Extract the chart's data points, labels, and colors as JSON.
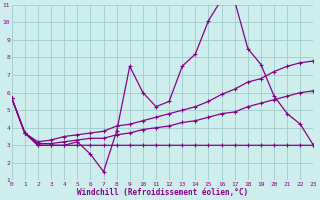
{
  "xlabel": "Windchill (Refroidissement éolien,°C)",
  "xlim": [
    0,
    23
  ],
  "ylim": [
    1,
    11
  ],
  "xticks": [
    0,
    1,
    2,
    3,
    4,
    5,
    6,
    7,
    8,
    9,
    10,
    11,
    12,
    13,
    14,
    15,
    16,
    17,
    18,
    19,
    20,
    21,
    22,
    23
  ],
  "yticks": [
    1,
    2,
    3,
    4,
    5,
    6,
    7,
    8,
    9,
    10,
    11
  ],
  "bg_color": "#cdeeed",
  "grid_color": "#a0cccc",
  "line_color": "#880088",
  "line1_y": [
    5.7,
    3.7,
    3.0,
    3.0,
    3.0,
    3.2,
    2.5,
    1.5,
    3.8,
    7.5,
    6.0,
    5.2,
    5.5,
    7.5,
    8.2,
    10.1,
    11.3,
    11.2,
    8.5,
    7.6,
    5.8,
    4.8,
    4.2,
    3.0
  ],
  "line2_y": [
    5.7,
    3.7,
    3.2,
    3.3,
    3.5,
    3.6,
    3.7,
    3.8,
    4.1,
    4.2,
    4.4,
    4.6,
    4.8,
    5.0,
    5.2,
    5.5,
    5.9,
    6.2,
    6.6,
    6.8,
    7.2,
    7.5,
    7.7,
    7.8
  ],
  "line3_y": [
    5.7,
    3.7,
    3.0,
    3.0,
    3.0,
    3.0,
    3.0,
    3.0,
    3.0,
    3.0,
    3.0,
    3.0,
    3.0,
    3.0,
    3.0,
    3.0,
    3.0,
    3.0,
    3.0,
    3.0,
    3.0,
    3.0,
    3.0,
    3.0
  ],
  "line4_y": [
    5.7,
    3.7,
    3.1,
    3.1,
    3.2,
    3.3,
    3.4,
    3.4,
    3.6,
    3.7,
    3.9,
    4.0,
    4.1,
    4.3,
    4.4,
    4.6,
    4.8,
    4.9,
    5.2,
    5.4,
    5.6,
    5.8,
    6.0,
    6.1
  ]
}
